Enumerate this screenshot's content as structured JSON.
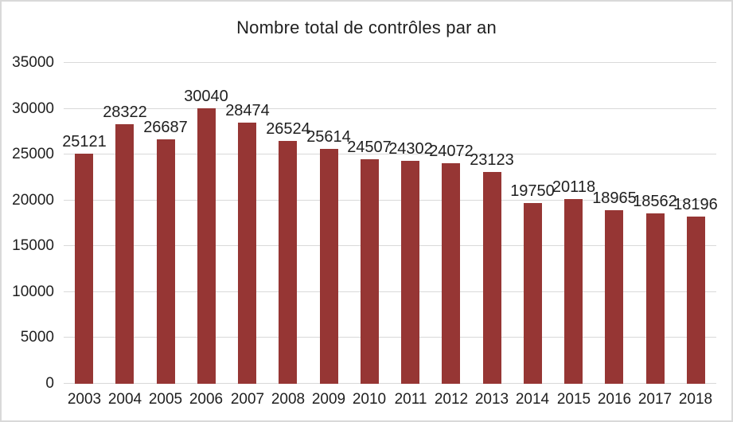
{
  "chart_data": {
    "type": "bar",
    "title": "Nombre total de contrôles par an",
    "categories": [
      "2003",
      "2004",
      "2005",
      "2006",
      "2007",
      "2008",
      "2009",
      "2010",
      "2011",
      "2012",
      "2013",
      "2014",
      "2015",
      "2016",
      "2017",
      "2018"
    ],
    "values": [
      25121,
      28322,
      26687,
      30040,
      28474,
      26524,
      25614,
      24507,
      24302,
      24072,
      23123,
      19750,
      20118,
      18965,
      18562,
      18196
    ],
    "xlabel": "",
    "ylabel": "",
    "ylim": [
      0,
      35000
    ],
    "ytick_step": 5000,
    "yticks": [
      0,
      5000,
      10000,
      15000,
      20000,
      25000,
      30000,
      35000
    ],
    "grid": true,
    "legend": "none",
    "data_labels": true,
    "colors": {
      "bar": "#963634",
      "gridline": "#D9D9D9",
      "text": "#1F1F1F",
      "frame_border": "#D9D9D9",
      "background": "#FFFFFF"
    }
  }
}
